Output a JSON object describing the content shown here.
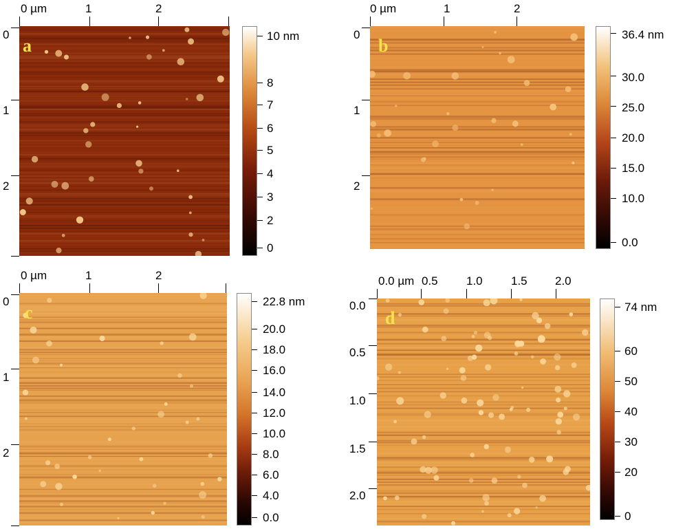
{
  "panels": {
    "a": {
      "letter": "a",
      "x_ticks": [
        "0 µm",
        "1",
        "2"
      ],
      "y_ticks": [
        "0",
        "1",
        "2"
      ],
      "colorbar_labels": [
        "10 nm",
        "8",
        "7",
        "6",
        "5",
        "4",
        "3",
        "2",
        "0"
      ],
      "base_color": "#8a2a0a",
      "stripe_dark": "#3a0c04",
      "feature_color": "#f4c98a"
    },
    "b": {
      "letter": "b",
      "x_ticks": [
        "0 µm",
        "1",
        "2"
      ],
      "y_ticks": [
        "0",
        "1",
        "2"
      ],
      "colorbar_labels": [
        "36.4 nm",
        "30.0",
        "25.0",
        "20.0",
        "15.0",
        "10.0",
        "0.0"
      ],
      "base_color": "#e49340",
      "stripe_dark": "#6a2410",
      "feature_color": "#f6c27a"
    },
    "c": {
      "letter": "c",
      "x_ticks": [
        "0 µm",
        "1",
        "2"
      ],
      "y_ticks": [
        "0",
        "1",
        "2"
      ],
      "colorbar_labels": [
        "22.8 nm",
        "20.0",
        "18.0",
        "16.0",
        "14.0",
        "12.0",
        "10.0",
        "8.0",
        "6.0",
        "4.0",
        "0.0"
      ],
      "base_color": "#e7a24e",
      "stripe_dark": "#8a3612",
      "feature_color": "#fad89a"
    },
    "d": {
      "letter": "d",
      "x_ticks": [
        "0.0 µm",
        "0.5",
        "1.0",
        "1.5",
        "2.0"
      ],
      "y_ticks": [
        "0.0",
        "0.5",
        "1.0",
        "1.5",
        "2.0"
      ],
      "colorbar_labels": [
        "74 nm",
        "60",
        "50",
        "40",
        "30",
        "20",
        "0"
      ],
      "base_color": "#e7a048",
      "stripe_dark": "#7a2a10",
      "feature_color": "#fbd79a"
    }
  }
}
